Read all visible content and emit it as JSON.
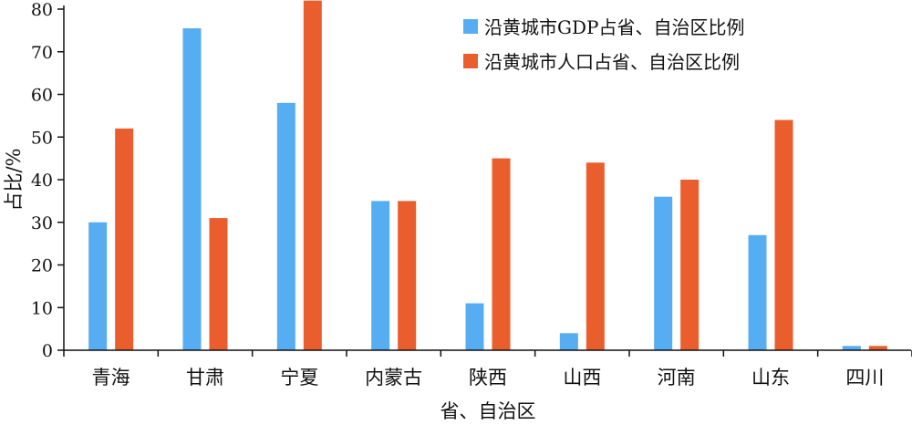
{
  "chart_data": {
    "type": "bar",
    "categories": [
      "青海",
      "甘肃",
      "宁夏",
      "内蒙古",
      "陕西",
      "山西",
      "河南",
      "山东",
      "四川"
    ],
    "series": [
      {
        "name": "沿黄城市GDP占省、自治区比例",
        "color": "#56adf2",
        "values": [
          30,
          75.5,
          58,
          35,
          11,
          4,
          36,
          27,
          1
        ]
      },
      {
        "name": "沿黄城市人口占省、自治区比例",
        "color": "#ea5e2e",
        "values": [
          52,
          31,
          82,
          35,
          45,
          44,
          40,
          54,
          1
        ]
      }
    ],
    "xlabel": "省、自治区",
    "ylabel": "占比/%",
    "ylim": [
      0,
      80
    ],
    "yticks": [
      0,
      10,
      20,
      30,
      40,
      50,
      60,
      70,
      80
    ],
    "legend_position": "top-right",
    "grid": false
  }
}
